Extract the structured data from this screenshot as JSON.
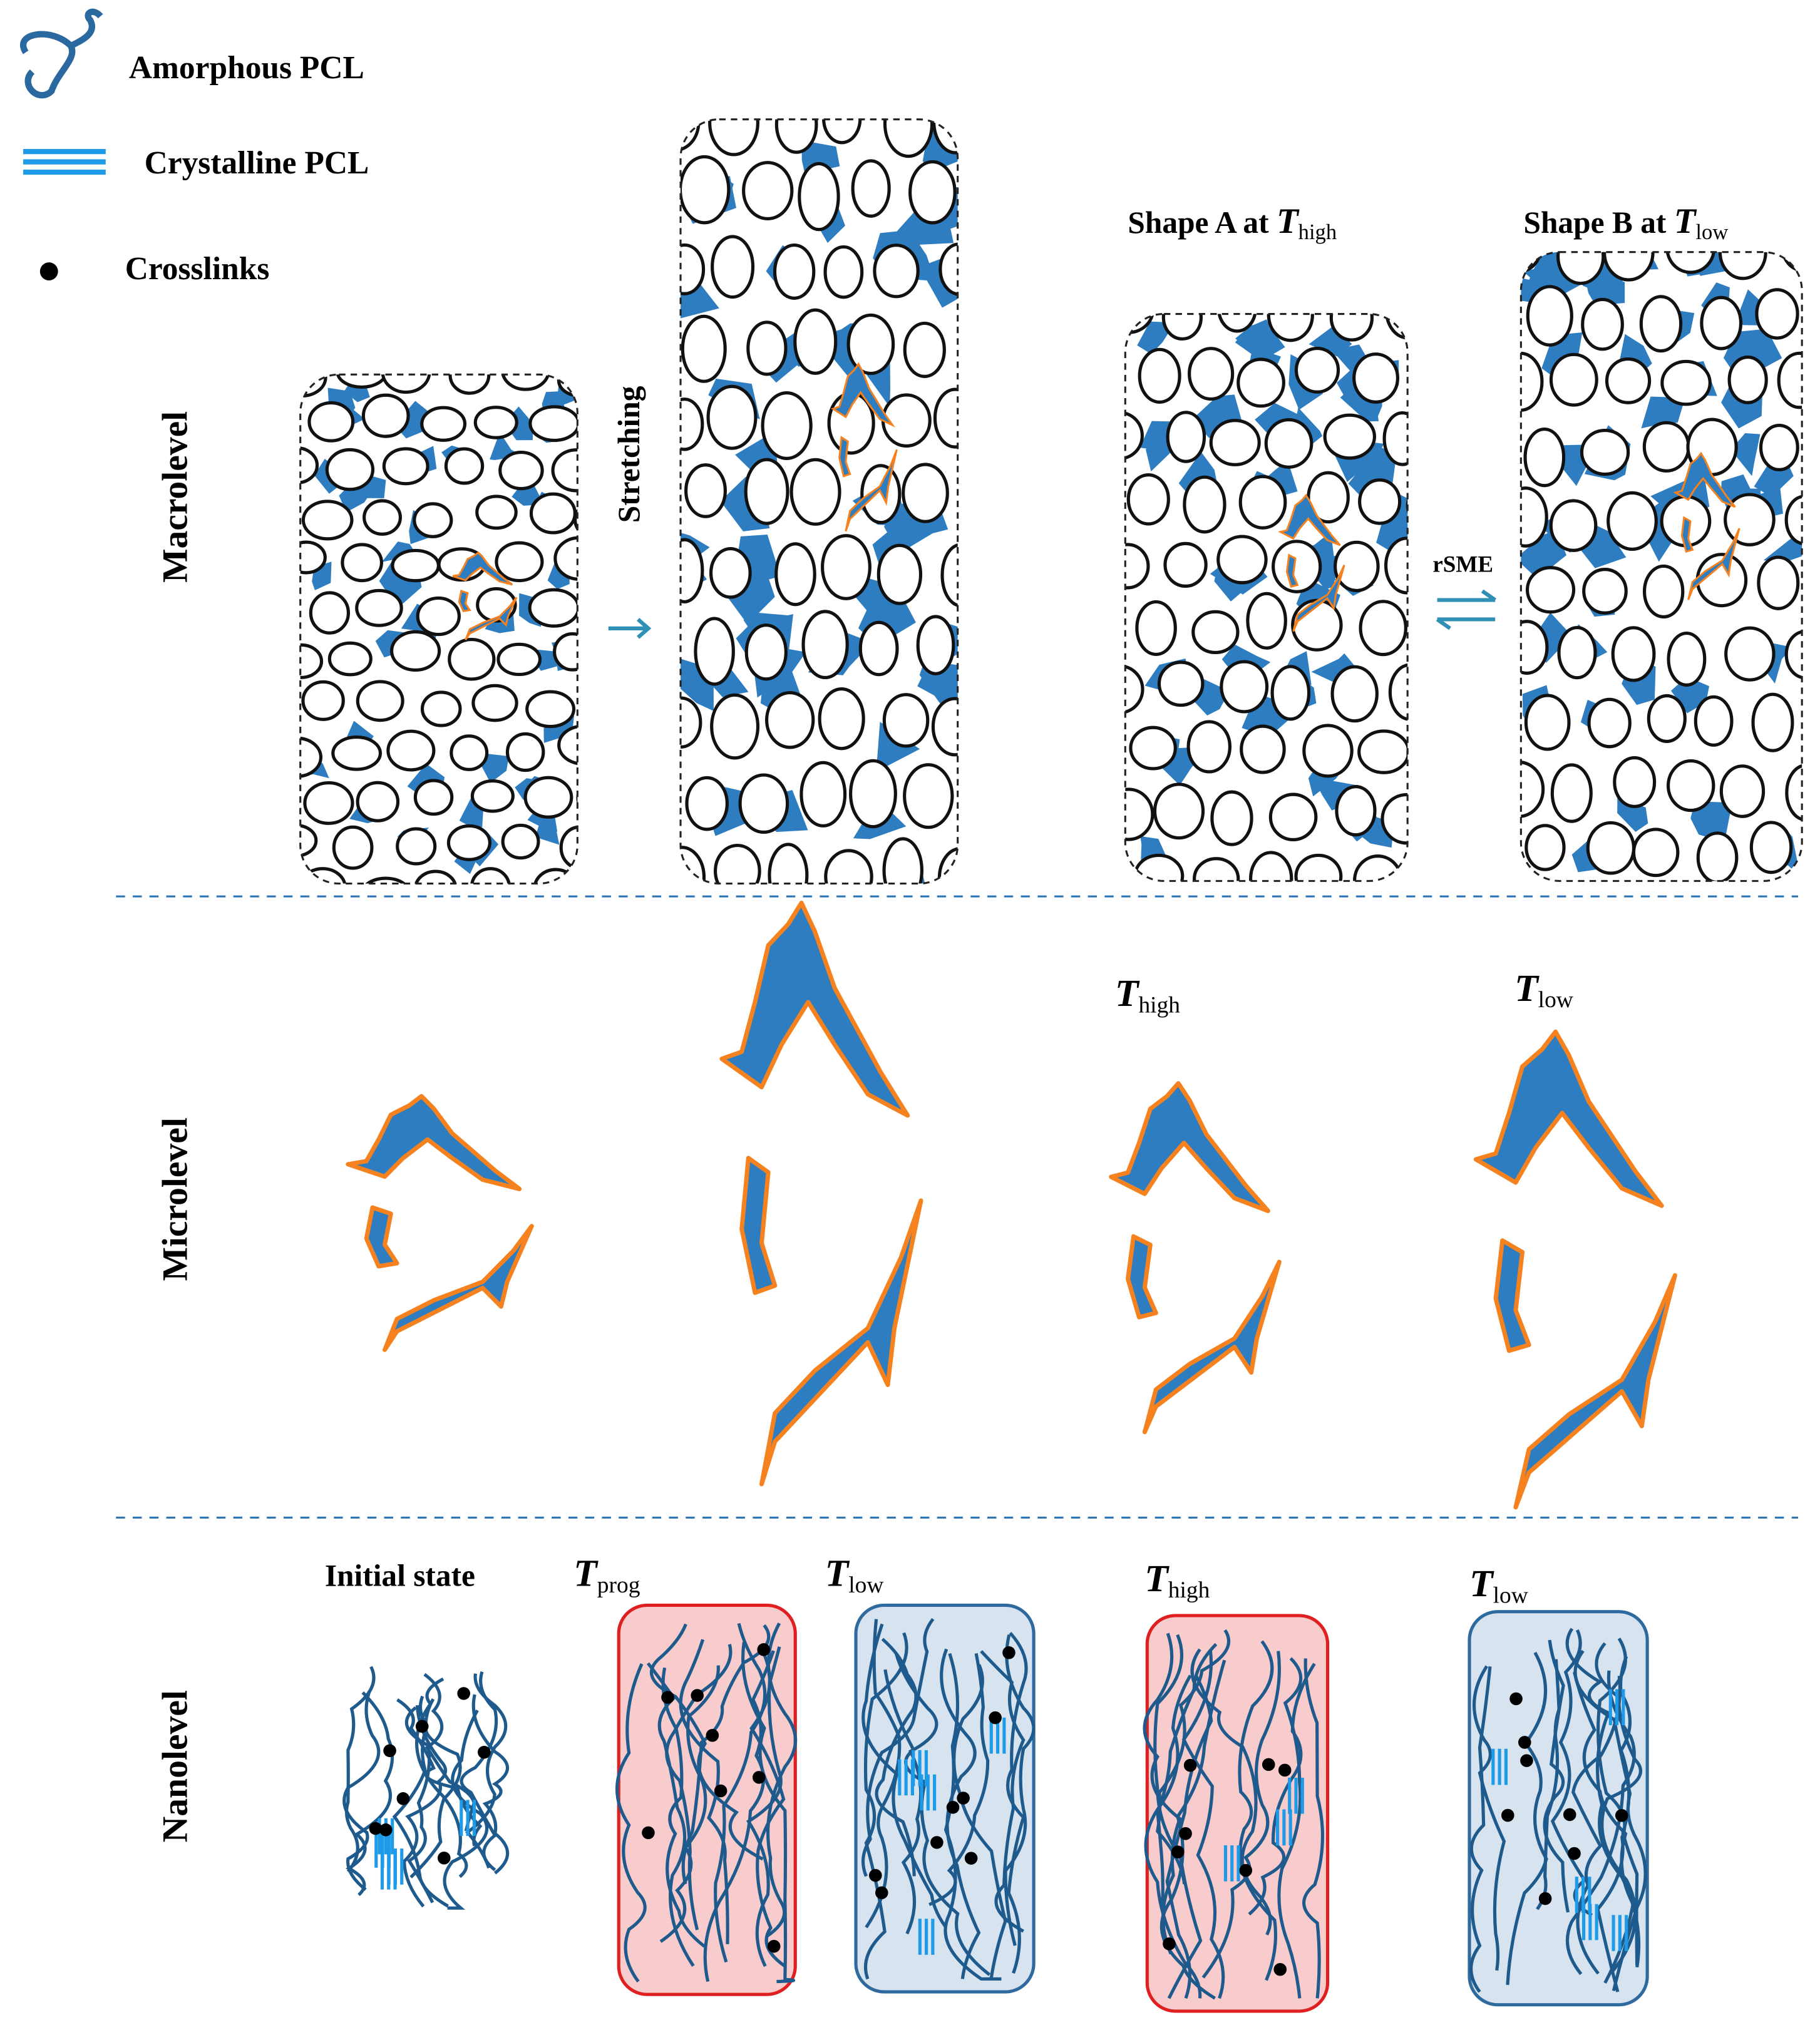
{
  "legend": [
    {
      "label": "Amorphous PCL"
    },
    {
      "label": "Crystalline PCL"
    },
    {
      "label": "Crosslinks"
    }
  ],
  "levels": [
    "Macrolevel",
    "Microlevel",
    "Nanolevel"
  ],
  "macro": {
    "step": "Stretching",
    "switch": "rSME",
    "shape_a": {
      "prefix": "Shape A at ",
      "symbol": "T",
      "sub": "high"
    },
    "shape_b": {
      "prefix": "Shape B at ",
      "symbol": "T",
      "sub": "low"
    }
  },
  "micro": [
    {
      "symbol": "T",
      "sub": "high"
    },
    {
      "symbol": "T",
      "sub": "low"
    }
  ],
  "nano": [
    {
      "label": "Initial state"
    },
    {
      "symbol": "T",
      "sub": "prog"
    },
    {
      "symbol": "T",
      "sub": "low"
    },
    {
      "symbol": "T",
      "sub": "high"
    },
    {
      "symbol": "T",
      "sub": "low"
    }
  ]
}
